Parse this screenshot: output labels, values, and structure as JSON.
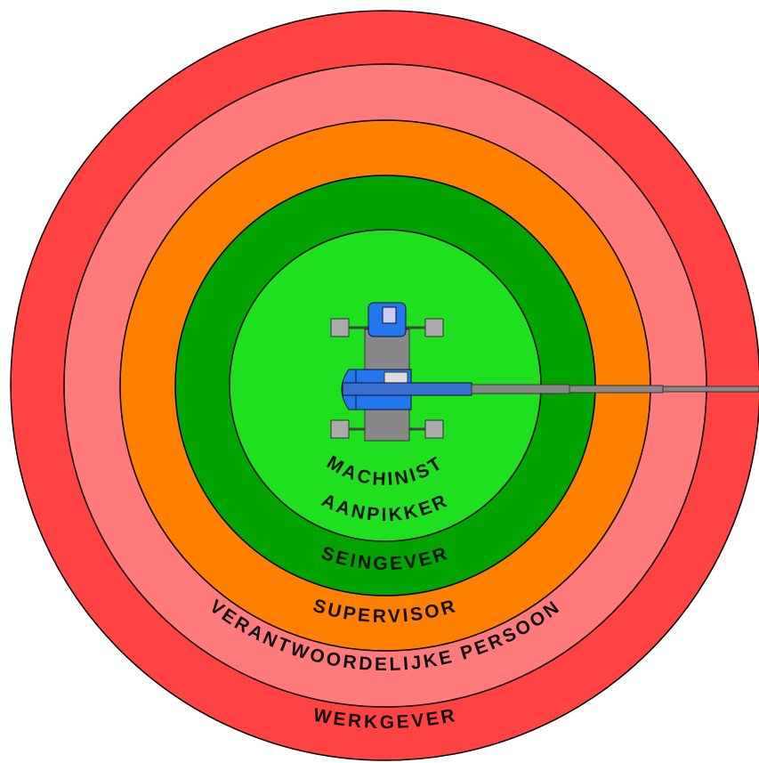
{
  "zones": [
    {
      "label": "WERKGEVER"
    },
    {
      "label": "VERANTWOORDELIJKE PERSOON"
    },
    {
      "label": "SUPERVISOR"
    },
    {
      "label": "SEINGEVER"
    },
    {
      "label": "AANPIKKER"
    },
    {
      "label": "MACHINIST"
    }
  ]
}
